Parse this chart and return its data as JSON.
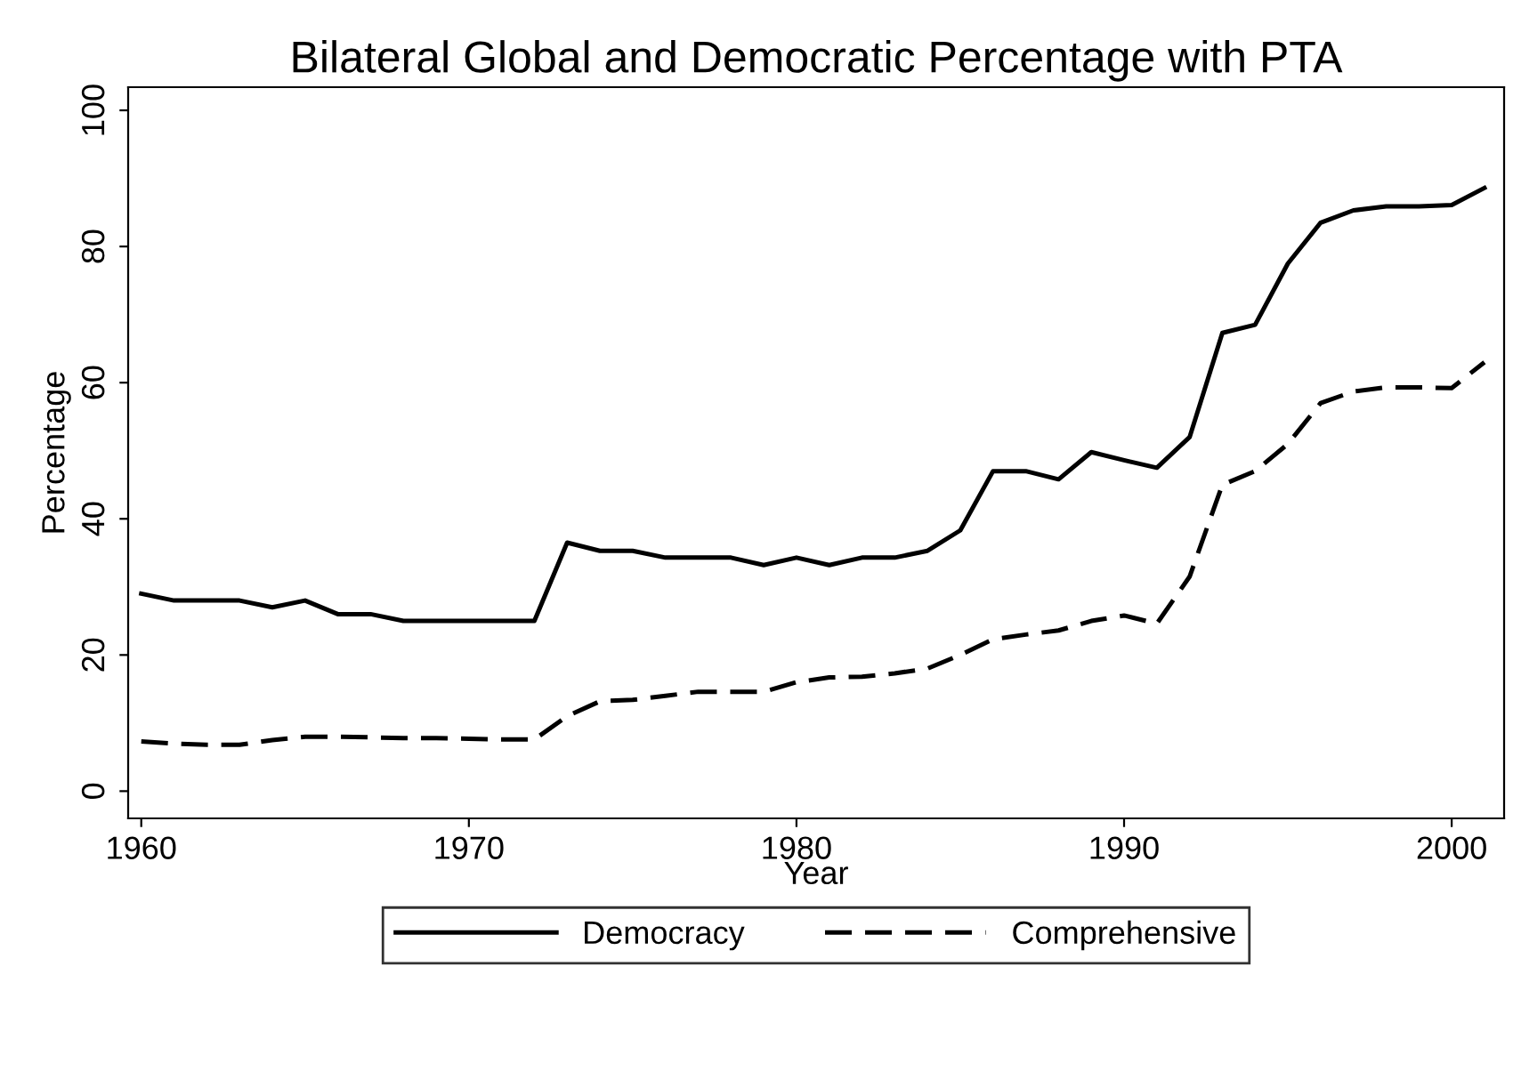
{
  "chart_data": {
    "type": "line",
    "title": "Bilateral Global and Democratic Percentage with PTA",
    "xlabel": "Year",
    "ylabel": "Percentage",
    "x": [
      1960,
      1961,
      1962,
      1963,
      1964,
      1965,
      1966,
      1967,
      1968,
      1969,
      1970,
      1971,
      1972,
      1973,
      1974,
      1975,
      1976,
      1977,
      1978,
      1979,
      1980,
      1981,
      1982,
      1983,
      1984,
      1985,
      1986,
      1987,
      1988,
      1989,
      1990,
      1991,
      1992,
      1993,
      1994,
      1995,
      1996,
      1997,
      1998,
      1999,
      2000,
      2001
    ],
    "series": [
      {
        "name": "Democracy",
        "color": "#000000",
        "line_style": "solid",
        "values": [
          29,
          28,
          28,
          28,
          27,
          28,
          26,
          26,
          25,
          25,
          25,
          25,
          25,
          36.5,
          35.3,
          35.3,
          34.3,
          34.3,
          34.3,
          33.2,
          34.3,
          33.2,
          34.3,
          34.3,
          35.3,
          38.3,
          47,
          47,
          45.8,
          49.8,
          48.6,
          47.5,
          52,
          67.3,
          68.5,
          77.5,
          83.5,
          85.3,
          85.9,
          85.9,
          86.1,
          88.6
        ]
      },
      {
        "name": "Comprehensive",
        "color": "#000000",
        "line_style": "dashed",
        "values": [
          7.3,
          7,
          6.8,
          6.8,
          7.5,
          8,
          8,
          7.9,
          7.8,
          7.8,
          7.7,
          7.6,
          7.6,
          11,
          13.2,
          13.4,
          14,
          14.6,
          14.6,
          14.6,
          16,
          16.7,
          16.8,
          17.3,
          18,
          20,
          22.3,
          23,
          23.6,
          25,
          25.8,
          24.6,
          31.5,
          45,
          47,
          51,
          57,
          58.7,
          59.3,
          59.3,
          59.2,
          63
        ]
      }
    ],
    "xlim": [
      1959.6,
      2001.6
    ],
    "xticks": [
      1960,
      1970,
      1980,
      1990,
      2000
    ],
    "ylim": [
      -4,
      103.4
    ],
    "yticks": [
      0,
      20,
      40,
      60,
      80,
      100
    ],
    "grid": false,
    "legend": "bottom",
    "marker": "none"
  }
}
